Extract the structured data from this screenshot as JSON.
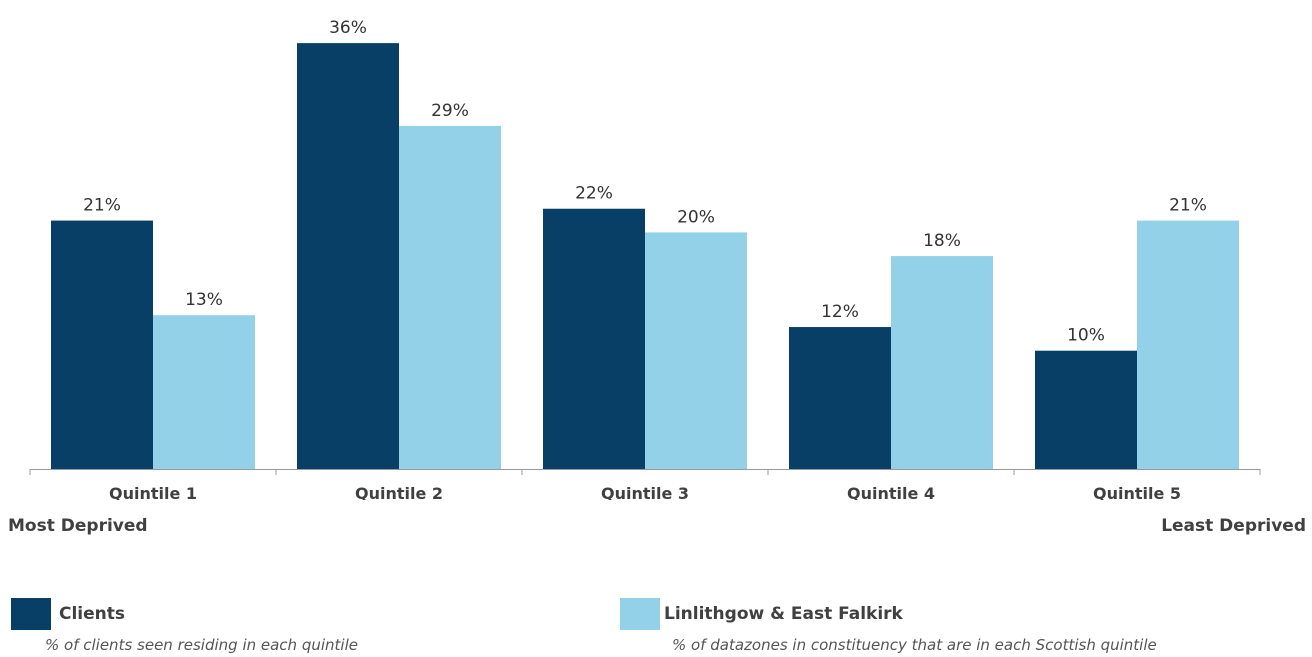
{
  "chart_data": {
    "type": "bar",
    "categories": [
      "Quintile 1",
      "Quintile 2",
      "Quintile 3",
      "Quintile 4",
      "Quintile 5"
    ],
    "series": [
      {
        "name": "Clients",
        "values": [
          21,
          36,
          22,
          12,
          10
        ],
        "labels": [
          "21%",
          "36%",
          "22%",
          "12%",
          "10%"
        ],
        "color": "#073f66"
      },
      {
        "name": "Linlithgow & East Falkirk",
        "values": [
          13,
          29,
          20,
          18,
          21
        ],
        "labels": [
          "13%",
          "29%",
          "20%",
          "18%",
          "21%"
        ],
        "color": "#93d1e8"
      }
    ],
    "axis_extremes": {
      "left": "Most Deprived",
      "right": "Least Deprived"
    },
    "legend": [
      {
        "name": "Clients",
        "description": "% of clients seen residing in each quintile",
        "color": "#073f66"
      },
      {
        "name": "Linlithgow & East Falkirk",
        "description": "% of datazones in constituency that are in each Scottish quintile",
        "color": "#93d1e8"
      }
    ],
    "ylim": [
      0,
      36
    ],
    "grid": false,
    "legend_position": "bottom"
  }
}
